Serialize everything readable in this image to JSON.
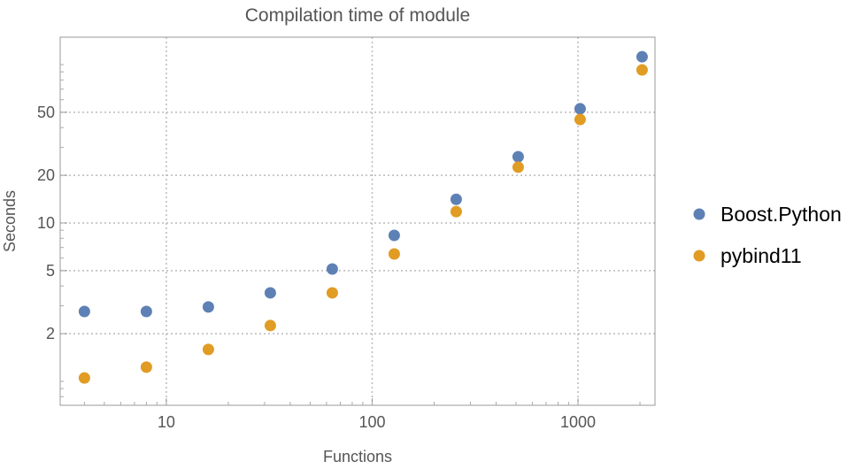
{
  "chart_data": {
    "type": "scatter",
    "title": "Compilation time of module",
    "xlabel": "Functions",
    "ylabel": "Seconds",
    "xscale": "log",
    "yscale": "log",
    "xlim": [
      3.05,
      2366
    ],
    "ylim": [
      0.706,
      149
    ],
    "xticks": [
      10,
      100,
      1000
    ],
    "xtick_labels": [
      "10",
      "100",
      "1000"
    ],
    "yticks": [
      2,
      5,
      10,
      20,
      50
    ],
    "ytick_labels": [
      "2",
      "5",
      "10",
      "20",
      "50"
    ],
    "grid": true,
    "legend_position": "right",
    "x": [
      4,
      8,
      16,
      32,
      64,
      128,
      256,
      512,
      1024,
      2048
    ],
    "series": [
      {
        "name": "Boost.Python",
        "color": "#5E81B5",
        "values": [
          2.76,
          2.76,
          2.95,
          3.62,
          5.12,
          8.35,
          14.1,
          26.2,
          52.6,
          112
        ]
      },
      {
        "name": "pybind11",
        "color": "#E19C24",
        "values": [
          1.05,
          1.23,
          1.59,
          2.25,
          3.62,
          6.37,
          11.8,
          22.5,
          45,
          92.5
        ]
      }
    ]
  }
}
